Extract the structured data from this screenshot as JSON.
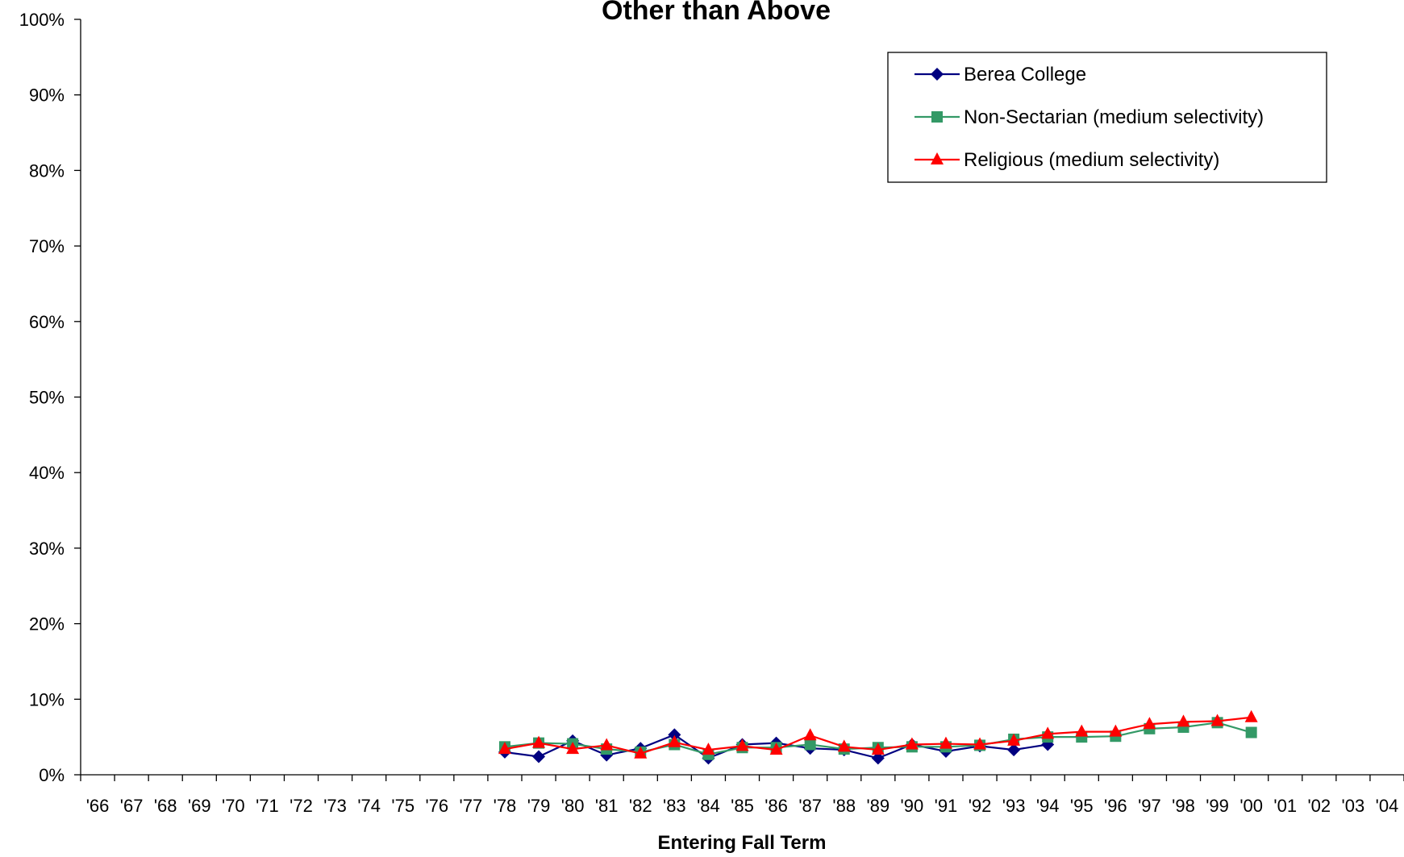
{
  "chart_data": {
    "type": "line",
    "title": "Other than Above",
    "xlabel": "Entering Fall Term",
    "ylabel": "",
    "ylim": [
      0,
      100
    ],
    "y_ticks": [
      "0%",
      "10%",
      "20%",
      "30%",
      "40%",
      "50%",
      "60%",
      "70%",
      "80%",
      "90%",
      "100%"
    ],
    "categories": [
      "'66",
      "'67",
      "'68",
      "'69",
      "'70",
      "'71",
      "'72",
      "'73",
      "'74",
      "'75",
      "'76",
      "'77",
      "'78",
      "'79",
      "'80",
      "'81",
      "'82",
      "'83",
      "'84",
      "'85",
      "'86",
      "'87",
      "'88",
      "'89",
      "'90",
      "'91",
      "'92",
      "'93",
      "'94",
      "'95",
      "'96",
      "'97",
      "'98",
      "'99",
      "'00",
      "'01",
      "'02",
      "'03",
      "'04"
    ],
    "grid": false,
    "legend_position": "top-right",
    "series": [
      {
        "name": "Berea College",
        "color": "#000080",
        "marker": "diamond",
        "values": [
          null,
          null,
          null,
          null,
          null,
          null,
          null,
          null,
          null,
          null,
          null,
          null,
          3.0,
          2.4,
          4.5,
          2.6,
          3.5,
          5.3,
          2.2,
          4.0,
          4.2,
          3.5,
          3.3,
          2.2,
          4.0,
          3.1,
          3.8,
          3.3,
          4.0,
          null,
          null,
          null,
          null,
          null,
          null,
          null,
          null,
          null,
          null
        ]
      },
      {
        "name": "Non-Sectarian (medium selectivity)",
        "color": "#339966",
        "marker": "square",
        "values": [
          null,
          null,
          null,
          null,
          null,
          null,
          null,
          null,
          null,
          null,
          null,
          null,
          3.7,
          4.2,
          4.1,
          3.4,
          3.0,
          4.0,
          2.7,
          3.6,
          3.6,
          4.0,
          3.4,
          3.6,
          3.7,
          3.7,
          3.9,
          4.7,
          5.0,
          5.0,
          5.1,
          6.1,
          6.3,
          6.9,
          5.6,
          null,
          null,
          null,
          null
        ]
      },
      {
        "name": "Religious (medium selectivity)",
        "color": "#FF0000",
        "marker": "triangle",
        "values": [
          null,
          null,
          null,
          null,
          null,
          null,
          null,
          null,
          null,
          null,
          null,
          null,
          3.4,
          4.2,
          3.4,
          3.9,
          2.8,
          4.3,
          3.3,
          3.8,
          3.3,
          5.2,
          3.7,
          3.3,
          4.0,
          4.1,
          4.0,
          4.5,
          5.4,
          5.7,
          5.7,
          6.7,
          7.0,
          7.1,
          7.6,
          null,
          null,
          null,
          null
        ]
      }
    ]
  }
}
